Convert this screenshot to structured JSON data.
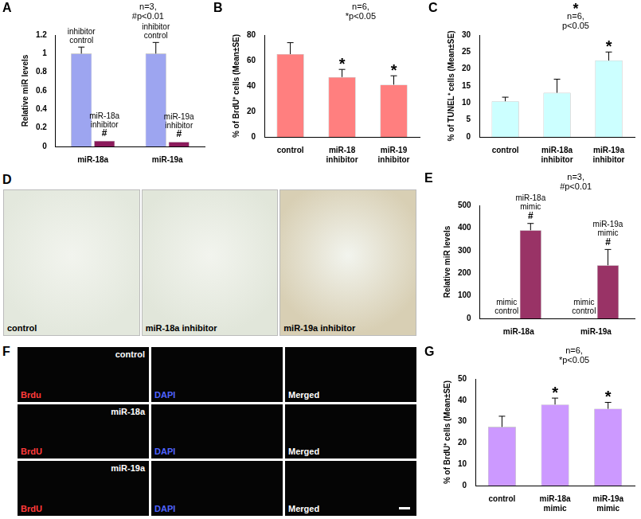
{
  "chart_data": [
    {
      "type": "bar",
      "panel": "A",
      "y_label": "Relative miR levels",
      "categories": [
        "miR-18a",
        "miR-19a"
      ],
      "series": [
        {
          "color": "#9da5f0",
          "values": [
            1,
            1
          ],
          "errors": [
            0.07,
            0.12
          ],
          "annotations": [
            [
              "inhibitor control"
            ],
            [
              "inhibitor control"
            ]
          ]
        },
        {
          "color": "#8b1a5b",
          "values": [
            0.06,
            0.05
          ],
          "errors": [
            0,
            0
          ],
          "annotations": [
            [
              "miR-18a inhibitor",
              "#"
            ],
            [
              "miR-19a inhibitor",
              "#"
            ]
          ]
        }
      ],
      "note": [
        "n=3,",
        "#p<0.01"
      ],
      "ylim": [
        0,
        1.2
      ],
      "yticks": [
        0,
        0.2,
        0.4,
        0.6,
        0.8,
        1,
        1.2
      ],
      "grid": false
    },
    {
      "type": "bar",
      "panel": "B",
      "y_label": "% of BrdU⁺ cells (Mean±SE)",
      "categories": [
        "control",
        "miR-18 inhibitor",
        "miR-19 inhibitor"
      ],
      "values": [
        65,
        47,
        41
      ],
      "errors": [
        9,
        6,
        7
      ],
      "color": "#ff7f7f",
      "annotations": [
        null,
        [
          "*"
        ],
        [
          "*"
        ]
      ],
      "note": [
        "n=6,",
        "*p<0.05"
      ],
      "ylim": [
        0,
        80
      ],
      "yticks": [
        0,
        20,
        40,
        60,
        80
      ],
      "grid": false
    },
    {
      "type": "bar",
      "panel": "C",
      "y_label": "% of TUNEL⁺ cells (Mean±SE)",
      "categories": [
        "control",
        "miR-18a inhibitor",
        "miR-19a inhibitor"
      ],
      "values": [
        10.5,
        13,
        22.5
      ],
      "errors": [
        1.2,
        4,
        2.5
      ],
      "color": "#ccffff",
      "annotations": [
        null,
        null,
        [
          "*"
        ]
      ],
      "note": [
        "*",
        "n=6,",
        "p<0.05"
      ],
      "ylim": [
        0,
        30
      ],
      "yticks": [
        0,
        5,
        10,
        15,
        20,
        25,
        30
      ],
      "grid": false
    },
    {
      "type": "bar",
      "panel": "E",
      "y_label": "Relative miR levels",
      "categories": [
        "miR-18a",
        "miR-19a"
      ],
      "series": [
        {
          "color": "#993366",
          "values": [
            1,
            1
          ],
          "errors": [
            0,
            0
          ],
          "annotations": [
            [
              "mimic control"
            ],
            [
              "mimic control"
            ]
          ]
        },
        {
          "color": "#993366",
          "values": [
            390,
            235
          ],
          "errors": [
            30,
            70
          ],
          "annotations": [
            [
              "miR-18a mimic",
              "#"
            ],
            [
              "miR-19a mimic",
              "#"
            ]
          ]
        }
      ],
      "note": [
        "n=3,",
        "#p<0.01"
      ],
      "ylim": [
        0,
        500
      ],
      "yticks": [
        0,
        100,
        200,
        300,
        400,
        500
      ],
      "grid": false
    },
    {
      "type": "bar",
      "panel": "G",
      "y_label": "% of BrdU⁺ cells (Mean±SE)",
      "categories": [
        "control",
        "miR-18a mimic",
        "miR-19a mimic"
      ],
      "values": [
        27.5,
        38,
        36
      ],
      "errors": [
        5,
        3,
        3
      ],
      "color": "#cc99ff",
      "annotations": [
        null,
        [
          "*"
        ],
        [
          "*"
        ]
      ],
      "note": [
        "n=6,",
        "*p<0.05"
      ],
      "ylim": [
        0,
        50
      ],
      "yticks": [
        0,
        10,
        20,
        30,
        40,
        50
      ],
      "grid": false
    }
  ],
  "image_panels": [
    {
      "panel": "D",
      "images": [
        {
          "label": "control"
        },
        {
          "label": "miR-18a inhibitor"
        },
        {
          "label": "miR-19a inhibitor"
        }
      ]
    },
    {
      "panel": "F",
      "rows": [
        {
          "label": "control",
          "channels": [
            "Brdu",
            "DAPI",
            "Merged"
          ]
        },
        {
          "label": "miR-18a",
          "channels": [
            "BrdU",
            "DAPI",
            "Merged"
          ]
        },
        {
          "label": "miR-19a",
          "channels": [
            "BrdU",
            "DAPI",
            "Merged"
          ]
        }
      ]
    }
  ]
}
